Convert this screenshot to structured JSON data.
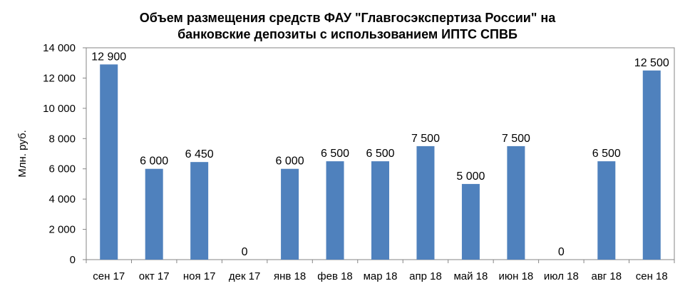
{
  "chart_data": {
    "type": "bar",
    "title": "Объем размещения средств ФАУ \"Главгосэкспертиза России\" на банковские депозиты с использованием ИПТС СПВБ",
    "title_lines": [
      "Объем размещения средств ФАУ \"Главгосэкспертиза России\" на",
      "банковские депозиты с использованием ИПТС СПВБ"
    ],
    "xlabel": "",
    "ylabel": "Млн. руб.",
    "categories": [
      "сен 17",
      "окт 17",
      "ноя 17",
      "дек 17",
      "янв 18",
      "фев 18",
      "мар 18",
      "апр 18",
      "май 18",
      "июн 18",
      "июл 18",
      "авг 18",
      "сен 18"
    ],
    "values": [
      12900,
      6000,
      6450,
      0,
      6000,
      6500,
      6500,
      7500,
      5000,
      7500,
      0,
      6500,
      12500
    ],
    "data_labels": [
      "12 900",
      "6 000",
      "6 450",
      "0",
      "6 000",
      "6 500",
      "6 500",
      "7 500",
      "5 000",
      "7 500",
      "0",
      "6 500",
      "12 500"
    ],
    "ylim": [
      0,
      14000
    ],
    "yticks": [
      0,
      2000,
      4000,
      6000,
      8000,
      10000,
      12000,
      14000
    ],
    "ytick_labels": [
      "0",
      "2 000",
      "4 000",
      "6 000",
      "8 000",
      "10 000",
      "12 000",
      "14 000"
    ],
    "grid": false,
    "legend": "none",
    "bar_color": "#4F81BD",
    "axis_color": "#868686"
  }
}
